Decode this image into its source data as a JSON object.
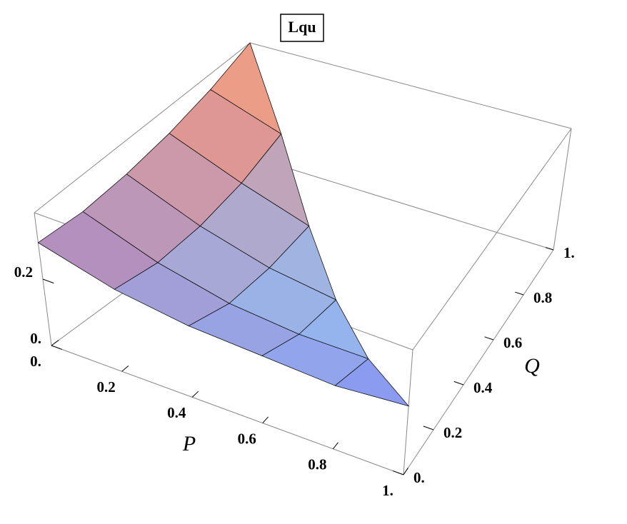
{
  "chart_data": {
    "type": "surface",
    "title": "Lqu",
    "x_label": "P",
    "y_label": "Q",
    "x": [
      0,
      0.2,
      0.4,
      0.6,
      0.8,
      1
    ],
    "y": [
      0,
      0.2,
      0.4,
      0.6,
      0.8,
      1
    ],
    "z": [
      [
        0.31,
        0.3,
        0.31,
        0.33,
        0.36,
        0.4
      ],
      [
        0.25,
        0.22,
        0.22,
        0.24,
        0.28,
        null
      ],
      [
        0.22,
        0.17,
        0.16,
        0.17,
        null,
        null
      ],
      [
        0.21,
        0.15,
        0.13,
        null,
        null,
        null
      ],
      [
        0.2,
        0.15,
        null,
        null,
        null,
        null
      ],
      [
        0.22,
        null,
        null,
        null,
        null,
        null
      ]
    ],
    "xlim": [
      0,
      1
    ],
    "ylim": [
      0,
      1
    ],
    "zlim": [
      0,
      0.4
    ],
    "xticks": [
      {
        "value": 0,
        "label": "0."
      },
      0.2,
      0.4,
      0.6,
      0.8,
      {
        "value": 1,
        "label": "1."
      }
    ],
    "yticks": [
      {
        "value": 0,
        "label": "0."
      },
      0.2,
      0.4,
      0.6,
      0.8,
      {
        "value": 1,
        "label": "1."
      }
    ],
    "zticks": [
      {
        "value": 0,
        "label": "0."
      },
      0.2
    ],
    "colormap": [
      "#8fd3ff",
      "#7a6cf0",
      "#f7a27c"
    ]
  }
}
